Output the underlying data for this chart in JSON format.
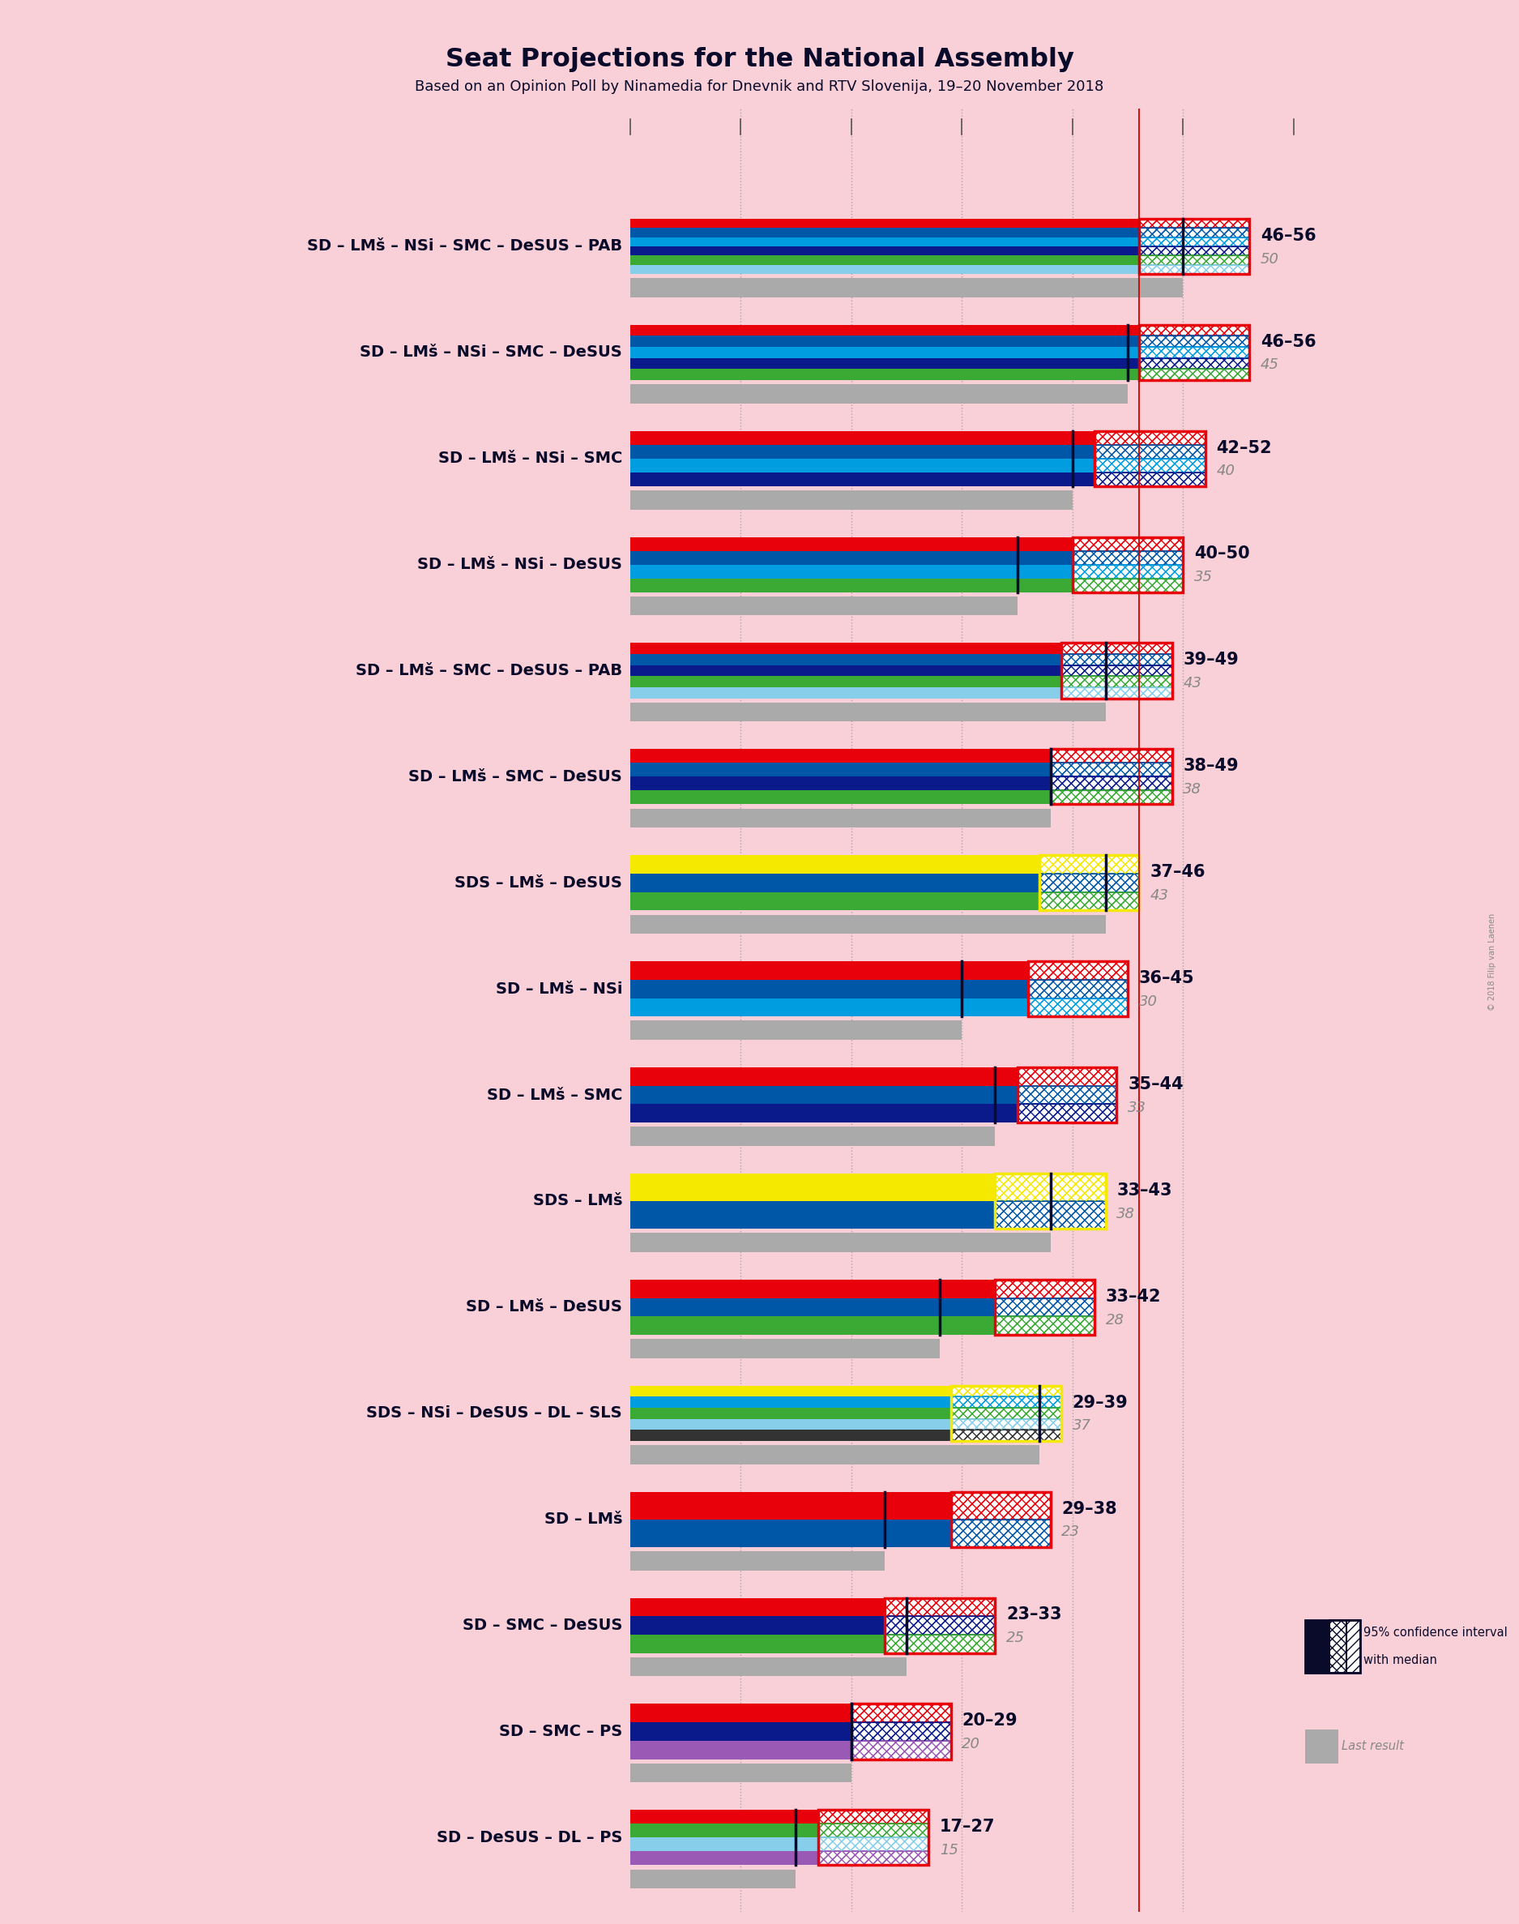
{
  "title": "Seat Projections for the National Assembly",
  "subtitle": "Based on an Opinion Poll by Ninamedia for Dnevnik and RTV Slovenija, 19–20 November 2018",
  "background_color": "#f9d0d8",
  "coalitions": [
    {
      "label": "SD – LMš – NSi – SMC – DeSUS – PAB",
      "low": 46,
      "high": 56,
      "median": 50,
      "last": 50,
      "colors": [
        "#e8000b",
        "#0057a8",
        "#009de0",
        "#0a1a8a",
        "#3aaa35",
        "#87ceeb"
      ],
      "has_yellow": false,
      "ci_color": "#e8000b"
    },
    {
      "label": "SD – LMš – NSi – SMC – DeSUS",
      "low": 46,
      "high": 56,
      "median": 45,
      "last": 45,
      "colors": [
        "#e8000b",
        "#0057a8",
        "#009de0",
        "#0a1a8a",
        "#3aaa35"
      ],
      "has_yellow": false,
      "ci_color": "#e8000b"
    },
    {
      "label": "SD – LMš – NSi – SMC",
      "low": 42,
      "high": 52,
      "median": 40,
      "last": 40,
      "colors": [
        "#e8000b",
        "#0057a8",
        "#009de0",
        "#0a1a8a"
      ],
      "has_yellow": false,
      "ci_color": "#e8000b"
    },
    {
      "label": "SD – LMš – NSi – DeSUS",
      "low": 40,
      "high": 50,
      "median": 35,
      "last": 35,
      "colors": [
        "#e8000b",
        "#0057a8",
        "#009de0",
        "#3aaa35"
      ],
      "has_yellow": false,
      "ci_color": "#e8000b"
    },
    {
      "label": "SD – LMš – SMC – DeSUS – PAB",
      "low": 39,
      "high": 49,
      "median": 43,
      "last": 43,
      "colors": [
        "#e8000b",
        "#0057a8",
        "#0a1a8a",
        "#3aaa35",
        "#87ceeb"
      ],
      "has_yellow": false,
      "ci_color": "#e8000b"
    },
    {
      "label": "SD – LMš – SMC – DeSUS",
      "low": 38,
      "high": 49,
      "median": 38,
      "last": 38,
      "colors": [
        "#e8000b",
        "#0057a8",
        "#0a1a8a",
        "#3aaa35"
      ],
      "has_yellow": false,
      "ci_color": "#e8000b"
    },
    {
      "label": "SDS – LMš – DeSUS",
      "low": 37,
      "high": 46,
      "median": 43,
      "last": 43,
      "colors": [
        "#f5e900",
        "#0057a8",
        "#3aaa35"
      ],
      "has_yellow": true,
      "ci_color": "#f5e900"
    },
    {
      "label": "SD – LMš – NSi",
      "low": 36,
      "high": 45,
      "median": 30,
      "last": 30,
      "colors": [
        "#e8000b",
        "#0057a8",
        "#009de0"
      ],
      "has_yellow": false,
      "ci_color": "#e8000b"
    },
    {
      "label": "SD – LMš – SMC",
      "low": 35,
      "high": 44,
      "median": 33,
      "last": 33,
      "colors": [
        "#e8000b",
        "#0057a8",
        "#0a1a8a"
      ],
      "has_yellow": false,
      "ci_color": "#e8000b"
    },
    {
      "label": "SDS – LMš",
      "low": 33,
      "high": 43,
      "median": 38,
      "last": 38,
      "colors": [
        "#f5e900",
        "#0057a8"
      ],
      "has_yellow": true,
      "ci_color": "#f5e900"
    },
    {
      "label": "SD – LMš – DeSUS",
      "low": 33,
      "high": 42,
      "median": 28,
      "last": 28,
      "colors": [
        "#e8000b",
        "#0057a8",
        "#3aaa35"
      ],
      "has_yellow": false,
      "ci_color": "#e8000b"
    },
    {
      "label": "SDS – NSi – DeSUS – DL – SLS",
      "low": 29,
      "high": 39,
      "median": 37,
      "last": 37,
      "colors": [
        "#f5e900",
        "#009de0",
        "#3aaa35",
        "#87ceeb",
        "#333333"
      ],
      "has_yellow": true,
      "ci_color": "#f5e900"
    },
    {
      "label": "SD – LMš",
      "low": 29,
      "high": 38,
      "median": 23,
      "last": 23,
      "colors": [
        "#e8000b",
        "#0057a8"
      ],
      "has_yellow": false,
      "ci_color": "#e8000b"
    },
    {
      "label": "SD – SMC – DeSUS",
      "low": 23,
      "high": 33,
      "median": 25,
      "last": 25,
      "colors": [
        "#e8000b",
        "#0a1a8a",
        "#3aaa35"
      ],
      "has_yellow": false,
      "ci_color": "#e8000b"
    },
    {
      "label": "SD – SMC – PS",
      "low": 20,
      "high": 29,
      "median": 20,
      "last": 20,
      "colors": [
        "#e8000b",
        "#0a1a8a",
        "#9b59b6"
      ],
      "has_yellow": false,
      "ci_color": "#e8000b"
    },
    {
      "label": "SD – DeSUS – DL – PS",
      "low": 17,
      "high": 27,
      "median": 15,
      "last": 15,
      "colors": [
        "#e8000b",
        "#3aaa35",
        "#87ceeb",
        "#9b59b6"
      ],
      "has_yellow": false,
      "ci_color": "#e8000b"
    }
  ],
  "xmin": 0,
  "xmax": 60,
  "majority_line": 46
}
